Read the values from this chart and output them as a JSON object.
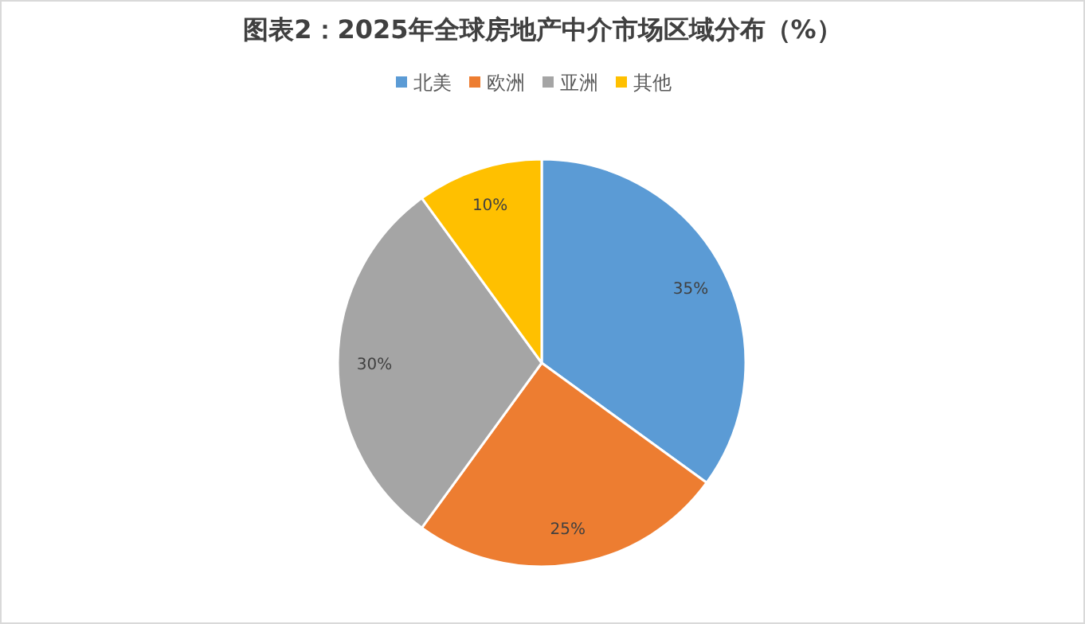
{
  "chart_data": {
    "type": "pie",
    "title": "图表2：2025年全球房地产中介市场区域分布（%）",
    "categories": [
      "北美",
      "欧洲",
      "亚洲",
      "其他"
    ],
    "values": [
      35,
      25,
      30,
      10
    ],
    "value_labels": [
      "35%",
      "25%",
      "30%",
      "10%"
    ],
    "colors": [
      "#5b9bd5",
      "#ed7d31",
      "#a5a5a5",
      "#ffc000"
    ],
    "legend": "top"
  }
}
